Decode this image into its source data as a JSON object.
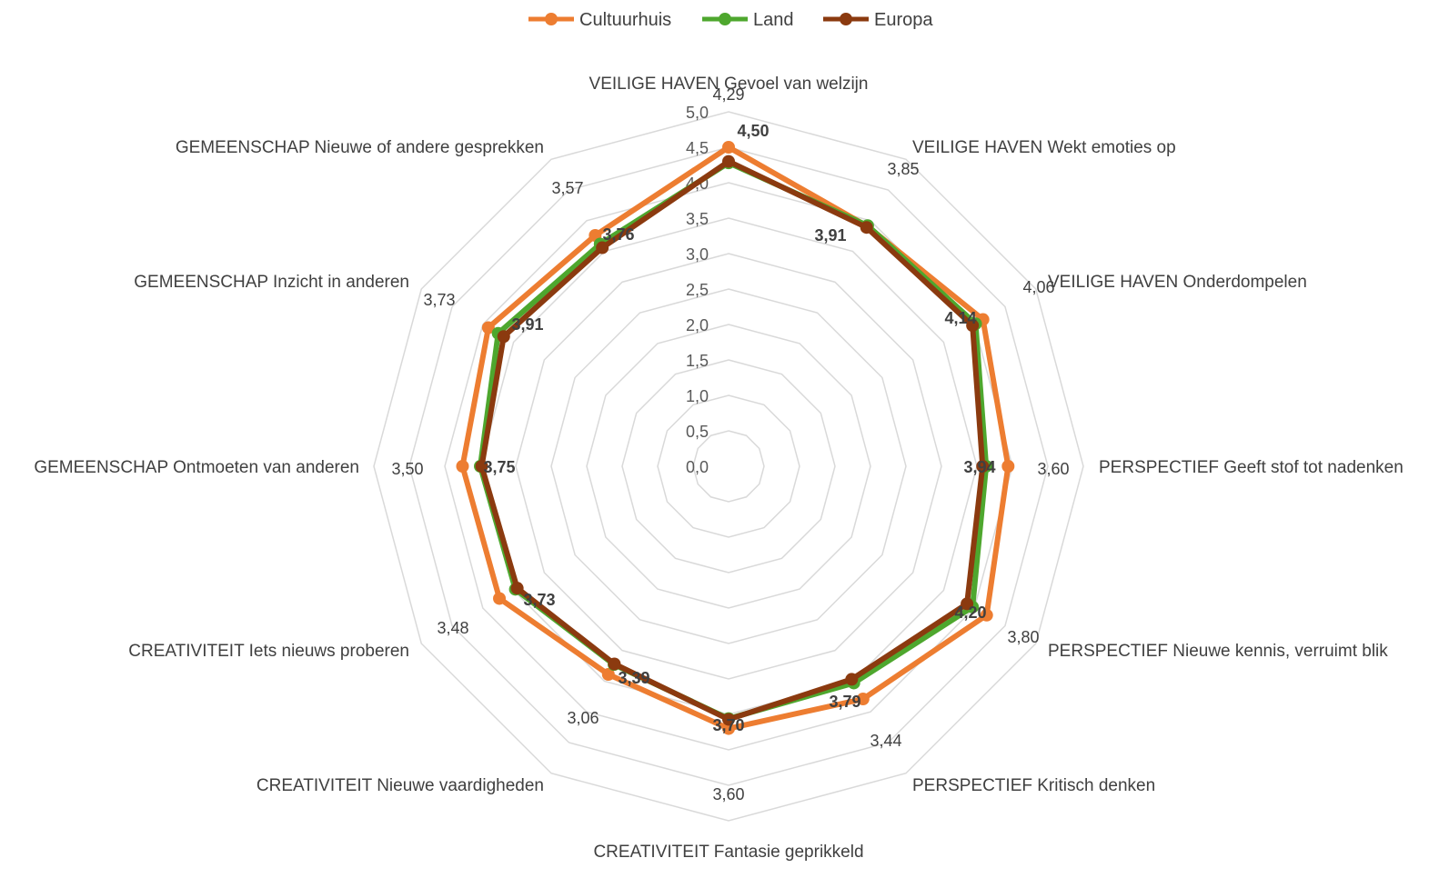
{
  "chart_data": {
    "type": "radar",
    "title": "",
    "axes": [
      "VEILIGE HAVEN Gevoel van welzijn",
      "VEILIGE HAVEN Wekt emoties op",
      "VEILIGE HAVEN Onderdompelen",
      "PERSPECTIEF Geeft stof tot nadenken",
      "PERSPECTIEF Nieuwe kennis, verruimt blik",
      "PERSPECTIEF Kritisch denken",
      "CREATIVITEIT Fantasie geprikkeld",
      "CREATIVITEIT Nieuwe vaardigheden",
      "CREATIVITEIT Iets nieuws proberen",
      "GEMEENSCHAP Ontmoeten van anderen",
      "GEMEENSCHAP Inzicht in anderen",
      "GEMEENSCHAP Nieuwe of andere gesprekken"
    ],
    "rlim": [
      0,
      5
    ],
    "ticks": [
      "0,0",
      "0,5",
      "1,0",
      "1,5",
      "2,0",
      "2,5",
      "3,0",
      "3,5",
      "4,0",
      "4,5",
      "5,0"
    ],
    "reference_labels": [
      "4,29",
      "3,85",
      "4,06",
      "3,60",
      "3,80",
      "3,44",
      "3,60",
      "3,06",
      "3,48",
      "3,50",
      "3,73",
      "3,57"
    ],
    "data_labels": [
      "4,50",
      "3,91",
      "4,14",
      "3,94",
      "4,20",
      "3,79",
      "3,70",
      "3,39",
      "3,73",
      "3,75",
      "3,91",
      "3,76"
    ],
    "series": [
      {
        "name": "Cultuurhuis",
        "color": "#ED7D31",
        "values": [
          4.5,
          3.91,
          4.14,
          3.94,
          4.2,
          3.79,
          3.7,
          3.39,
          3.73,
          3.75,
          3.91,
          3.76
        ]
      },
      {
        "name": "Land",
        "color": "#4EA72E",
        "values": [
          4.28,
          3.92,
          4.02,
          3.63,
          3.97,
          3.53,
          3.56,
          3.23,
          3.47,
          3.5,
          3.75,
          3.62
        ]
      },
      {
        "name": "Europa",
        "color": "#8B3A0F",
        "values": [
          4.3,
          3.89,
          3.97,
          3.58,
          3.88,
          3.47,
          3.57,
          3.22,
          3.44,
          3.48,
          3.66,
          3.56
        ]
      }
    ],
    "grid": true,
    "legend": "top"
  }
}
